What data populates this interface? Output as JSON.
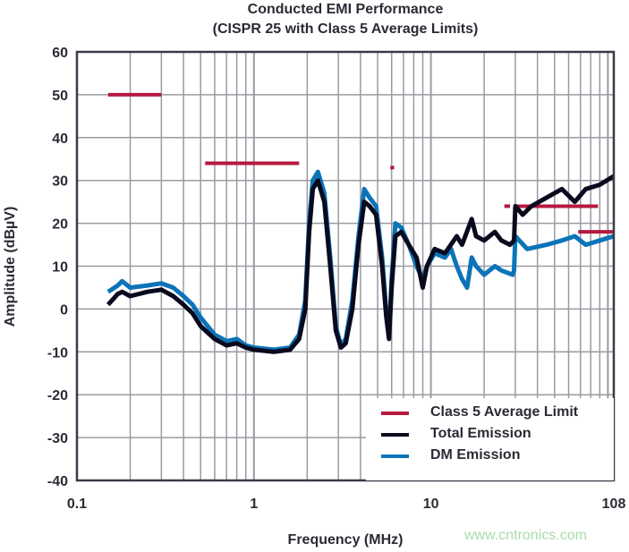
{
  "chart_data": {
    "type": "line",
    "title": "Conducted EMI Performance",
    "subtitle": "(CISPR 25 with Class 5 Average Limits)",
    "xlabel": "Frequency (MHz)",
    "ylabel": "Amplitude (dBµV)",
    "xscale": "log",
    "xlim": [
      0.1,
      108
    ],
    "ylim": [
      -40,
      60
    ],
    "xticks": [
      "0.1",
      "1",
      "10",
      "108"
    ],
    "yticks": [
      "60",
      "50",
      "40",
      "30",
      "20",
      "10",
      "0",
      "-10",
      "-20",
      "-30",
      "-40"
    ],
    "grid": true,
    "legend_position": "bottom-right",
    "series": [
      {
        "name": "Class 5 Average Limit",
        "color": "#b5193f",
        "segments": [
          [
            [
              0.15,
              50
            ],
            [
              0.3,
              50
            ]
          ],
          [
            [
              0.53,
              34
            ],
            [
              1.8,
              34
            ]
          ],
          [
            [
              5.9,
              33
            ],
            [
              6.2,
              33
            ]
          ],
          [
            [
              26,
              24
            ],
            [
              28,
              24
            ]
          ],
          [
            [
              30,
              24
            ],
            [
              88,
              24
            ]
          ],
          [
            [
              68,
              18
            ],
            [
              108,
              18
            ]
          ]
        ]
      },
      {
        "name": "Total Emission",
        "color": "#0a0a1e",
        "points": [
          [
            0.15,
            1
          ],
          [
            0.17,
            3.5
          ],
          [
            0.18,
            4
          ],
          [
            0.2,
            3
          ],
          [
            0.25,
            4
          ],
          [
            0.3,
            4.5
          ],
          [
            0.35,
            3
          ],
          [
            0.4,
            1
          ],
          [
            0.45,
            -1
          ],
          [
            0.5,
            -4
          ],
          [
            0.6,
            -7
          ],
          [
            0.7,
            -8.5
          ],
          [
            0.8,
            -8
          ],
          [
            0.9,
            -9
          ],
          [
            1,
            -9.5
          ],
          [
            1.3,
            -10
          ],
          [
            1.6,
            -9.5
          ],
          [
            1.8,
            -7
          ],
          [
            1.95,
            0
          ],
          [
            2.05,
            18
          ],
          [
            2.15,
            28
          ],
          [
            2.3,
            30
          ],
          [
            2.5,
            25
          ],
          [
            2.7,
            10
          ],
          [
            2.9,
            -5
          ],
          [
            3.1,
            -9
          ],
          [
            3.3,
            -8
          ],
          [
            3.6,
            0
          ],
          [
            3.9,
            15
          ],
          [
            4.2,
            25
          ],
          [
            4.5,
            24
          ],
          [
            4.9,
            22
          ],
          [
            5.3,
            10
          ],
          [
            5.6,
            -2
          ],
          [
            5.8,
            -7
          ],
          [
            6.0,
            5
          ],
          [
            6.3,
            17
          ],
          [
            6.8,
            18
          ],
          [
            7.5,
            15
          ],
          [
            8.3,
            12
          ],
          [
            9,
            5
          ],
          [
            9.5,
            10
          ],
          [
            10.5,
            14
          ],
          [
            12,
            13
          ],
          [
            14,
            17
          ],
          [
            15,
            15
          ],
          [
            17,
            21
          ],
          [
            18,
            17
          ],
          [
            20,
            16
          ],
          [
            23,
            18
          ],
          [
            25,
            16
          ],
          [
            28,
            15
          ],
          [
            29.5,
            16
          ],
          [
            30,
            24
          ],
          [
            33,
            22
          ],
          [
            37,
            24
          ],
          [
            45,
            26
          ],
          [
            55,
            28
          ],
          [
            65,
            25
          ],
          [
            75,
            28
          ],
          [
            90,
            29
          ],
          [
            108,
            31
          ]
        ]
      },
      {
        "name": "DM Emission",
        "color": "#0b74b8",
        "points": [
          [
            0.15,
            4
          ],
          [
            0.17,
            5.5
          ],
          [
            0.18,
            6.5
          ],
          [
            0.2,
            5
          ],
          [
            0.25,
            5.5
          ],
          [
            0.3,
            6
          ],
          [
            0.35,
            5
          ],
          [
            0.4,
            3
          ],
          [
            0.45,
            1
          ],
          [
            0.5,
            -2
          ],
          [
            0.6,
            -6
          ],
          [
            0.7,
            -7.5
          ],
          [
            0.8,
            -7
          ],
          [
            0.9,
            -8.5
          ],
          [
            1,
            -9
          ],
          [
            1.3,
            -9.5
          ],
          [
            1.6,
            -9
          ],
          [
            1.8,
            -6
          ],
          [
            1.95,
            2
          ],
          [
            2.05,
            20
          ],
          [
            2.15,
            30
          ],
          [
            2.3,
            32
          ],
          [
            2.5,
            27
          ],
          [
            2.7,
            12
          ],
          [
            2.9,
            -4
          ],
          [
            3.1,
            -8.5
          ],
          [
            3.3,
            -7
          ],
          [
            3.6,
            2
          ],
          [
            3.9,
            17
          ],
          [
            4.2,
            28
          ],
          [
            4.5,
            26
          ],
          [
            4.9,
            24
          ],
          [
            5.3,
            12
          ],
          [
            5.6,
            -1
          ],
          [
            5.8,
            -6
          ],
          [
            6.0,
            7
          ],
          [
            6.3,
            20
          ],
          [
            6.8,
            19
          ],
          [
            7.5,
            15
          ],
          [
            8.3,
            10
          ],
          [
            9,
            7
          ],
          [
            9.5,
            10
          ],
          [
            10.5,
            13
          ],
          [
            12,
            12
          ],
          [
            13,
            14
          ],
          [
            14,
            10
          ],
          [
            15,
            7
          ],
          [
            16,
            5
          ],
          [
            17,
            12
          ],
          [
            18,
            10
          ],
          [
            20,
            8
          ],
          [
            23,
            10
          ],
          [
            25,
            9
          ],
          [
            29,
            8
          ],
          [
            29.5,
            9
          ],
          [
            30,
            17
          ],
          [
            35,
            14
          ],
          [
            45,
            15
          ],
          [
            55,
            16
          ],
          [
            65,
            17
          ],
          [
            75,
            15
          ],
          [
            90,
            16
          ],
          [
            108,
            17
          ]
        ]
      }
    ]
  },
  "watermark": "www.cntronics.com"
}
